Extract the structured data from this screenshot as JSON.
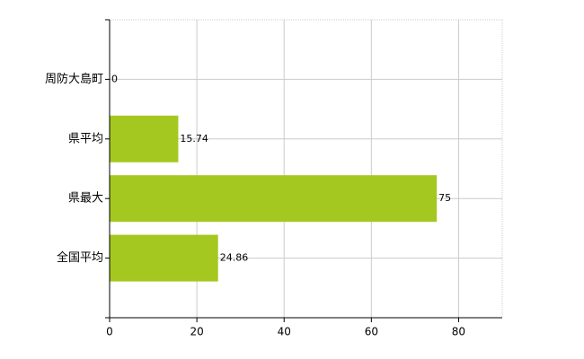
{
  "chart_data": {
    "type": "bar",
    "orientation": "horizontal",
    "categories": [
      "周防大島町",
      "県平均",
      "県最大",
      "全国平均"
    ],
    "values": [
      0,
      15.74,
      75,
      24.86
    ],
    "color": "#a5c820",
    "xlim": [
      0,
      90
    ],
    "xticks": [
      0,
      20,
      40,
      60,
      80
    ],
    "grid": true
  }
}
